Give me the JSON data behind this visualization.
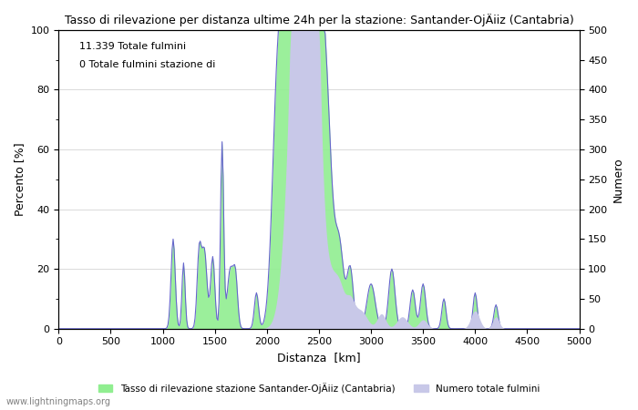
{
  "title": "Tasso di rilevazione per distanza ultime 24h per la stazione: Santander-OjÄiiz (Cantabria)",
  "ylabel_left": "Percento [%]",
  "ylabel_right": "Numero",
  "xlabel": "Distanza  [km]",
  "xlim": [
    0,
    5000
  ],
  "ylim_left": [
    0,
    100
  ],
  "ylim_right": [
    0,
    500
  ],
  "yticks_left": [
    0,
    20,
    40,
    60,
    80,
    100
  ],
  "yticks_right": [
    0,
    50,
    100,
    150,
    200,
    250,
    300,
    350,
    400,
    450,
    500
  ],
  "xticks": [
    0,
    500,
    1000,
    1500,
    2000,
    2500,
    3000,
    3500,
    4000,
    4500,
    5000
  ],
  "annotation_line1": "11.339 Totale fulmini",
  "annotation_line2": "0 Totale fulmini stazione di",
  "legend_label1": "Tasso di rilevazione stazione Santander-OjÄiiz (Cantabria)",
  "legend_label2": "Numero totale fulmini",
  "watermark": "www.lightningmaps.org",
  "line_color": "#6666cc",
  "fill_color_blue": "#c8c8e8",
  "fill_color_green": "#90ee90",
  "background_color": "#ffffff",
  "grid_color": "#cccccc"
}
